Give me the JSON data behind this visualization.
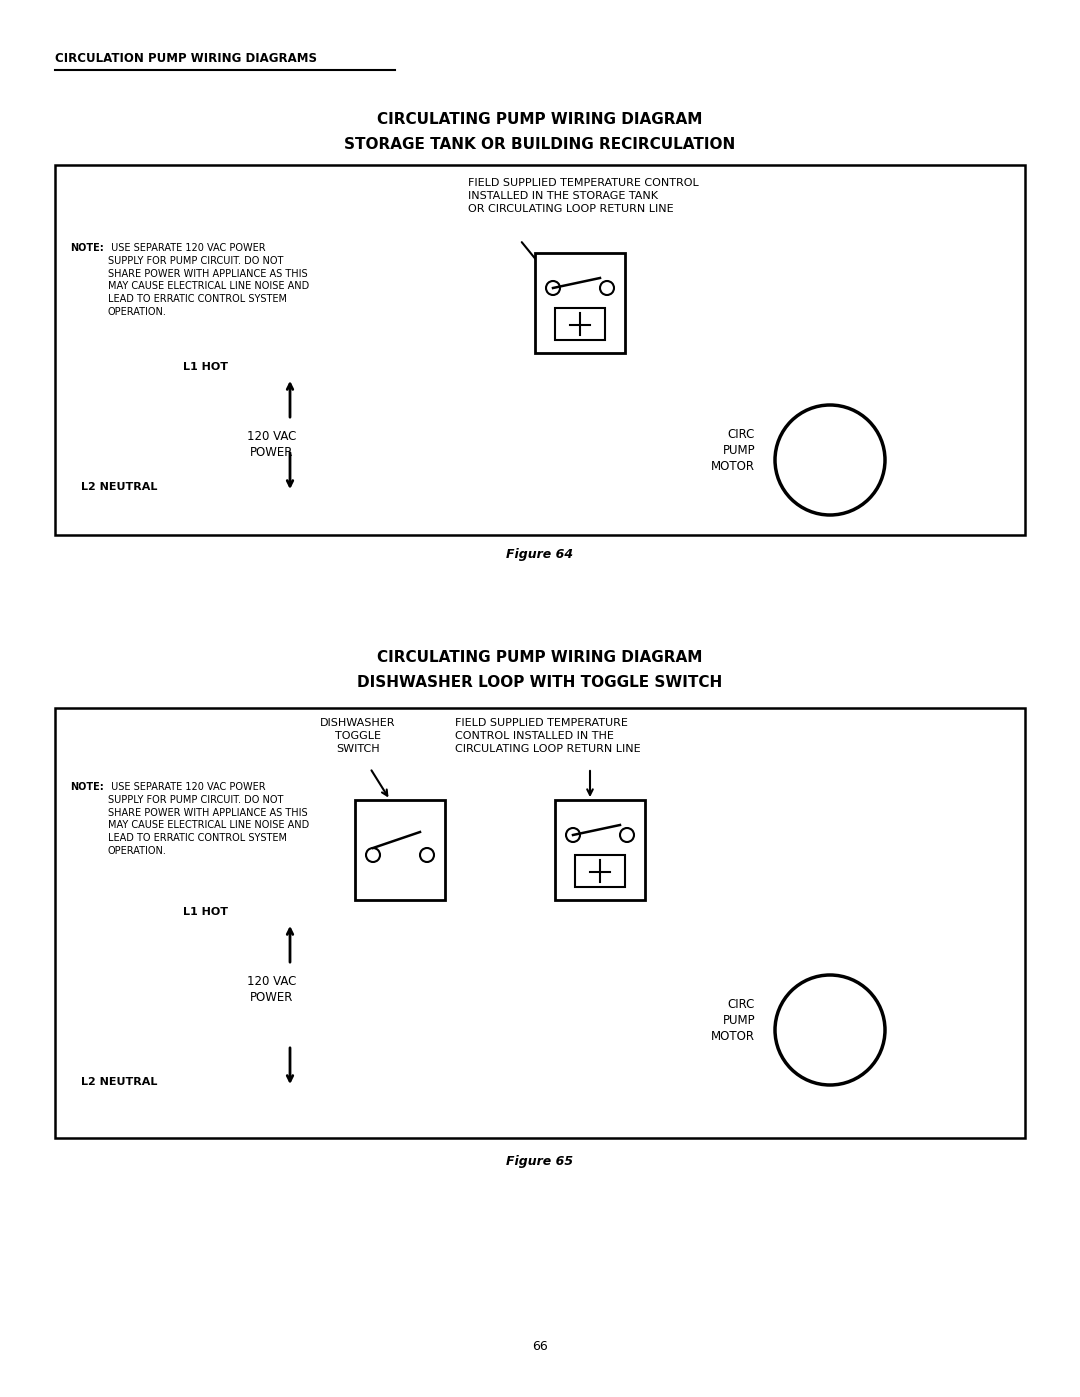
{
  "page_title": "CIRCULATION PUMP WIRING DIAGRAMS",
  "fig1_title_line1": "CIRCULATING PUMP WIRING DIAGRAM",
  "fig1_title_line2": "STORAGE TANK OR BUILDING RECIRCULATION",
  "fig1_caption": "Figure 64",
  "fig2_title_line1": "CIRCULATING PUMP WIRING DIAGRAM",
  "fig2_title_line2": "DISHWASHER LOOP WITH TOGGLE SWITCH",
  "fig2_caption": "Figure 65",
  "page_number": "66",
  "fig1_field_label": "FIELD SUPPLIED TEMPERATURE CONTROL\nINSTALLED IN THE STORAGE TANK\nOR CIRCULATING LOOP RETURN LINE",
  "fig1_l1_label": "L1 HOT",
  "fig1_power_label": "120 VAC\nPOWER",
  "fig1_l2_label": "L2 NEUTRAL",
  "fig1_pump_label": "CIRC\nPUMP\nMOTOR",
  "fig2_toggle_label": "DISHWASHER\nTOGGLE\nSWITCH",
  "fig2_field_label": "FIELD SUPPLIED TEMPERATURE\nCONTROL INSTALLED IN THE\nCIRCULATING LOOP RETURN LINE",
  "fig2_l1_label": "L1 HOT",
  "fig2_power_label": "120 VAC\nPOWER",
  "fig2_l2_label": "L2 NEUTRAL",
  "fig2_pump_label": "CIRC\nPUMP\nMOTOR",
  "note_bold": "NOTE:",
  "note_body": " USE SEPARATE 120 VAC POWER\nSUPPLY FOR PUMP CIRCUIT. DO NOT\nSHARE POWER WITH APPLIANCE AS THIS\nMAY CAUSE ELECTRICAL LINE NOISE AND\nLEAD TO ERRATIC CONTROL SYSTEM\nOPERATION.",
  "line_color": "#000000",
  "bg_color": "#ffffff"
}
